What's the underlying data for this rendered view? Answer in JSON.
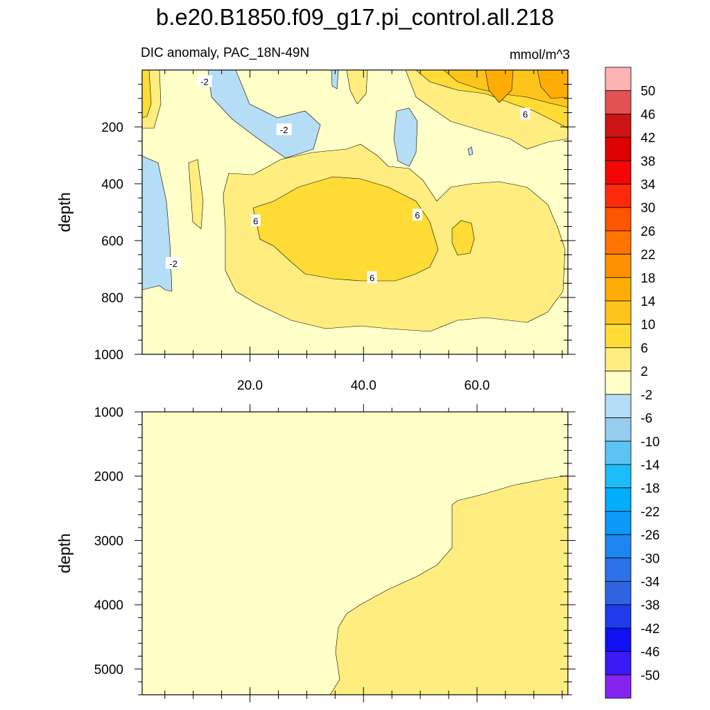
{
  "figure": {
    "title": "b.e20.B1850.f09_g17.pi_control.all.218",
    "subtitle_left": "DIC anomaly, PAC_18N-49N",
    "subtitle_right": "mmol/m^3"
  },
  "chart_data": [
    {
      "type": "heatmap",
      "panel": "upper",
      "ylabel": "depth",
      "xlabel": "",
      "xlim": [
        1,
        76
      ],
      "ylim": [
        1000,
        0
      ],
      "x_ticks": [
        20,
        40,
        60
      ],
      "x_tick_labels": [
        "20.0",
        "40.0",
        "60.0"
      ],
      "y_ticks": [
        200,
        400,
        600,
        800,
        1000
      ],
      "y_tick_labels": [
        "200",
        "400",
        "600",
        "800",
        "1000"
      ],
      "contour_labels": [
        {
          "text": "-2",
          "x": 12,
          "y": 40
        },
        {
          "text": "-2",
          "x": 26,
          "y": 210
        },
        {
          "text": "-2",
          "x": 6.5,
          "y": 680
        },
        {
          "text": "6",
          "x": 21,
          "y": 530
        },
        {
          "text": "6",
          "x": 49.5,
          "y": 510
        },
        {
          "text": "6",
          "x": 41.5,
          "y": 730
        },
        {
          "text": "6",
          "x": 68.5,
          "y": 155
        }
      ]
    },
    {
      "type": "heatmap",
      "panel": "lower",
      "ylabel": "depth",
      "xlabel": "",
      "xlim": [
        1,
        76
      ],
      "ylim": [
        5400,
        1000
      ],
      "y_ticks": [
        1000,
        2000,
        3000,
        4000,
        5000
      ],
      "y_tick_labels": [
        "1000",
        "2000",
        "3000",
        "4000",
        "5000"
      ]
    }
  ],
  "colorbar": {
    "units": "mmol/m^3",
    "levels": [
      "50",
      "46",
      "42",
      "38",
      "34",
      "30",
      "26",
      "22",
      "18",
      "14",
      "10",
      "6",
      "2",
      "-2",
      "-6",
      "-10",
      "-14",
      "-18",
      "-22",
      "-26",
      "-30",
      "-34",
      "-38",
      "-42",
      "-46",
      "-50"
    ],
    "colors": [
      "#fdb3b3",
      "#e35252",
      "#cc1414",
      "#dd0000",
      "#f50505",
      "#ff2a0a",
      "#ff5400",
      "#ff7400",
      "#ff9100",
      "#ffad05",
      "#ffc41c",
      "#ffdc35",
      "#ffee7f",
      "#ffffc8",
      "#b5ddf5",
      "#94cdef",
      "#5bc4f4",
      "#1dbcf8",
      "#00aefe",
      "#0c98f6",
      "#1e86f1",
      "#2c72e8",
      "#2e64e2",
      "#1d3cea",
      "#1010f5",
      "#3a1af5",
      "#8524ee"
    ]
  },
  "fill_colors": {
    "band_-6_-2": "#b5ddf5",
    "band_-2_2": "#ffffc8",
    "band_2_6": "#ffee7f",
    "band_6_10": "#ffdc35",
    "band_10_14": "#ffc41c",
    "band_14_18": "#ffad05"
  }
}
